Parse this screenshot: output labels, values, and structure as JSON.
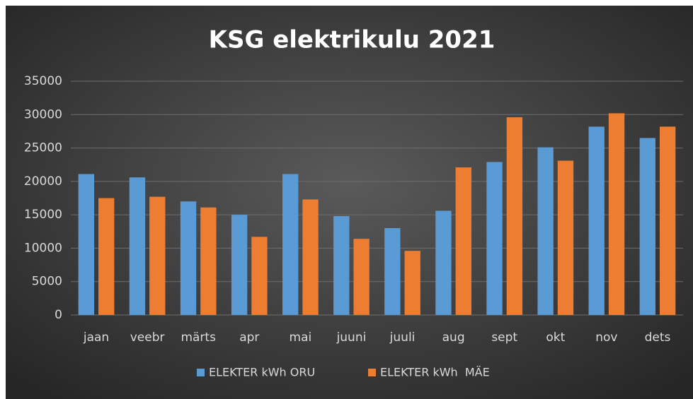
{
  "chart_data": {
    "type": "bar",
    "title": "KSG elektrikulu 2021",
    "categories": [
      "jaan",
      "veebr",
      "märts",
      "apr",
      "mai",
      "juuni",
      "juuli",
      "aug",
      "sept",
      "okt",
      "nov",
      "dets"
    ],
    "series": [
      {
        "name": "ELEKTER kWh ORU",
        "color": "#5b9bd5",
        "values": [
          21100,
          20600,
          17000,
          15000,
          21100,
          14800,
          13000,
          15600,
          22900,
          25100,
          28200,
          26500
        ]
      },
      {
        "name": "ELEKTER kWh  MÄE",
        "color": "#ed7d31",
        "values": [
          17500,
          17700,
          16100,
          11700,
          17300,
          11400,
          9600,
          22100,
          29600,
          23100,
          30200,
          28200
        ]
      }
    ],
    "ylim": [
      0,
      35000
    ],
    "yticks": [
      0,
      5000,
      10000,
      15000,
      20000,
      25000,
      30000,
      35000
    ],
    "grid": true,
    "legend": "bottom"
  }
}
